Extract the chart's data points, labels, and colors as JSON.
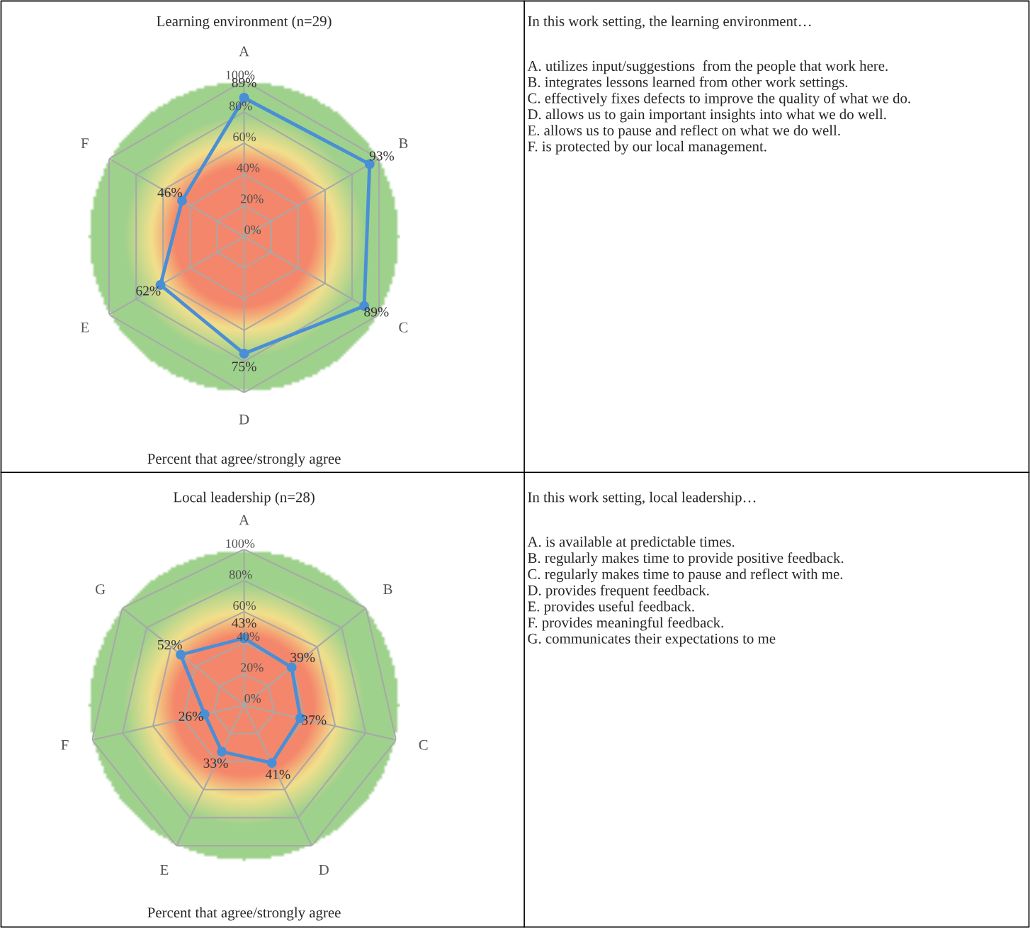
{
  "chart_data": [
    {
      "type": "radar",
      "title": "Learning environment (n=29)",
      "xlabel": "Percent that agree/strongly agree",
      "categories": [
        "A",
        "B",
        "C",
        "D",
        "E",
        "F"
      ],
      "series": [
        {
          "color": "#4a8fd6",
          "values": [
            89,
            93,
            89,
            75,
            62,
            46
          ],
          "value_labels": [
            "89%",
            "93%",
            "89%",
            "75%",
            "62%",
            "46%"
          ]
        }
      ],
      "ylim": [
        0,
        100
      ],
      "yticks": [
        {
          "value": 0,
          "label": "0%"
        },
        {
          "value": 20,
          "label": "20%"
        },
        {
          "value": 40,
          "label": "40%"
        },
        {
          "value": 60,
          "label": "60%"
        },
        {
          "value": 80,
          "label": "80%"
        },
        {
          "value": 100,
          "label": "100%"
        }
      ],
      "grid": true,
      "marker": "circle",
      "line_style": "solid"
    },
    {
      "type": "other",
      "title": "In this work setting, the learning environment…",
      "annotations": [
        "A. utilizes input/suggestions  from the people that work here.",
        "B. integrates lessons learned from other work settings.",
        "C. effectively fixes defects to improve the quality of what we do.",
        "D. allows us to gain important insights into what we do well.",
        "E. allows us to pause and reflect on what we do well.",
        "F. is protected by our local management."
      ]
    },
    {
      "type": "radar",
      "title": "Local leadership (n=28)",
      "xlabel": "Percent that agree/strongly agree",
      "categories": [
        "A",
        "B",
        "C",
        "D",
        "E",
        "F",
        "G"
      ],
      "series": [
        {
          "color": "#4a8fd6",
          "values": [
            43,
            39,
            37,
            41,
            33,
            26,
            52
          ],
          "value_labels": [
            "43%",
            "39%",
            "37%",
            "41%",
            "33%",
            "26%",
            "52%"
          ]
        }
      ],
      "ylim": [
        0,
        100
      ],
      "yticks": [
        {
          "value": 0,
          "label": "0%"
        },
        {
          "value": 20,
          "label": "20%"
        },
        {
          "value": 40,
          "label": "40%"
        },
        {
          "value": 60,
          "label": "60%"
        },
        {
          "value": 80,
          "label": "80%"
        },
        {
          "value": 100,
          "label": "100%"
        }
      ],
      "grid": true,
      "marker": "circle",
      "line_style": "solid"
    },
    {
      "type": "other",
      "title": "In this work setting, local leadership…",
      "annotations": [
        "A. is available at predictable times.",
        "B. regularly makes time to provide positive feedback.",
        "C. regularly makes time to pause and reflect with me.",
        "D. provides frequent feedback.",
        "E. provides useful feedback.",
        "F. provides meaningful feedback.",
        "G. communicates their expectations to me"
      ]
    }
  ]
}
